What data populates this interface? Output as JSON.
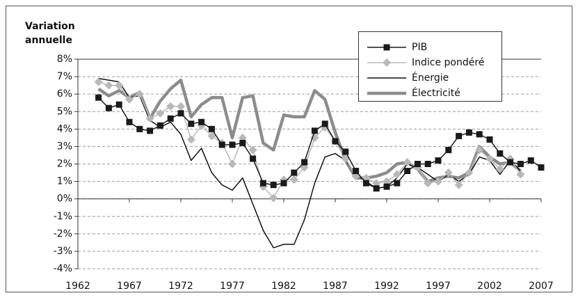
{
  "chart_data": {
    "type": "line",
    "y_label": "Variation annuelle",
    "x": [
      1964,
      1965,
      1966,
      1967,
      1968,
      1969,
      1970,
      1971,
      1972,
      1973,
      1974,
      1975,
      1976,
      1977,
      1978,
      1979,
      1980,
      1981,
      1982,
      1983,
      1984,
      1985,
      1986,
      1987,
      1988,
      1989,
      1990,
      1991,
      1992,
      1993,
      1994,
      1995,
      1996,
      1997,
      1998,
      1999,
      2000,
      2001,
      2002,
      2003,
      2004,
      2005,
      2006,
      2007
    ],
    "series": [
      {
        "name": "PIB",
        "color": "#1a1a1a",
        "marker": "square",
        "values": [
          5.8,
          5.2,
          5.4,
          4.4,
          4.0,
          3.9,
          4.2,
          4.6,
          4.9,
          4.3,
          4.4,
          4.0,
          3.1,
          3.1,
          3.2,
          2.3,
          0.9,
          0.8,
          0.9,
          1.5,
          2.1,
          3.9,
          4.3,
          3.3,
          2.7,
          1.6,
          0.9,
          0.6,
          0.7,
          0.9,
          1.6,
          2.0,
          2.0,
          2.2,
          2.8,
          3.6,
          3.8,
          3.7,
          3.4,
          2.6,
          2.1,
          2.0,
          2.2,
          1.8
        ]
      },
      {
        "name": "Indice pondéré",
        "color": "#b8b8b8",
        "marker": "diamond",
        "values": [
          6.7,
          6.5,
          6.5,
          5.7,
          6.0,
          4.6,
          4.9,
          5.3,
          5.3,
          3.4,
          4.2,
          3.6,
          3.2,
          2.0,
          3.5,
          2.8,
          0.7,
          0.05,
          1.1,
          1.1,
          1.8,
          3.5,
          4.1,
          3.3,
          2.3,
          1.3,
          1.2,
          0.9,
          1.0,
          1.4,
          2.1,
          1.8,
          0.9,
          1.0,
          1.5,
          0.8,
          1.5,
          2.8,
          2.3,
          1.7,
          2.3,
          1.4,
          null,
          null
        ]
      },
      {
        "name": "Énergie",
        "color": "#111111",
        "values": [
          6.9,
          6.8,
          6.7,
          5.8,
          5.9,
          4.5,
          4.1,
          4.4,
          3.7,
          2.2,
          2.9,
          1.5,
          0.8,
          0.5,
          1.2,
          -0.3,
          -1.8,
          -2.8,
          -2.6,
          -2.6,
          -1.2,
          0.9,
          2.4,
          2.6,
          2.2,
          1.4,
          1.0,
          0.6,
          0.7,
          1.2,
          2.0,
          1.8,
          1.4,
          1.0,
          1.4,
          1.0,
          1.4,
          2.4,
          2.2,
          1.4,
          2.2,
          1.6,
          null,
          null
        ]
      },
      {
        "name": "Électricité",
        "color": "#8c8c8c",
        "values": [
          6.3,
          5.9,
          6.2,
          5.8,
          6.1,
          4.6,
          5.6,
          6.3,
          6.8,
          4.7,
          5.4,
          5.8,
          5.8,
          3.5,
          5.8,
          5.9,
          3.2,
          2.8,
          4.8,
          4.7,
          4.7,
          6.2,
          5.7,
          3.8,
          2.2,
          1.2,
          1.2,
          1.3,
          1.5,
          2.0,
          2.1,
          1.7,
          1.0,
          1.2,
          1.3,
          1.2,
          1.5,
          3.0,
          2.4,
          2.0,
          2.1,
          1.6,
          null,
          null
        ]
      }
    ],
    "xlim": [
      1962,
      2007
    ],
    "xticks": [
      1962,
      1967,
      1972,
      1977,
      1982,
      1987,
      1992,
      1997,
      2002,
      2007
    ],
    "ylim": [
      -4,
      8
    ],
    "yticks": [
      {
        "value": -4,
        "label": "-4%"
      },
      {
        "value": -3,
        "label": "-3%"
      },
      {
        "value": -2,
        "label": "-2%"
      },
      {
        "value": -1,
        "label": "-1%"
      },
      {
        "value": 0,
        "label": "0%"
      },
      {
        "value": 1,
        "label": "1%"
      },
      {
        "value": 2,
        "label": "2%"
      },
      {
        "value": 3,
        "label": "3%"
      },
      {
        "value": 4,
        "label": "4%"
      },
      {
        "value": 5,
        "label": "5%"
      },
      {
        "value": 6,
        "label": "6%"
      },
      {
        "value": 7,
        "label": "7%"
      },
      {
        "value": 8,
        "label": "8%"
      }
    ],
    "grid": true
  }
}
